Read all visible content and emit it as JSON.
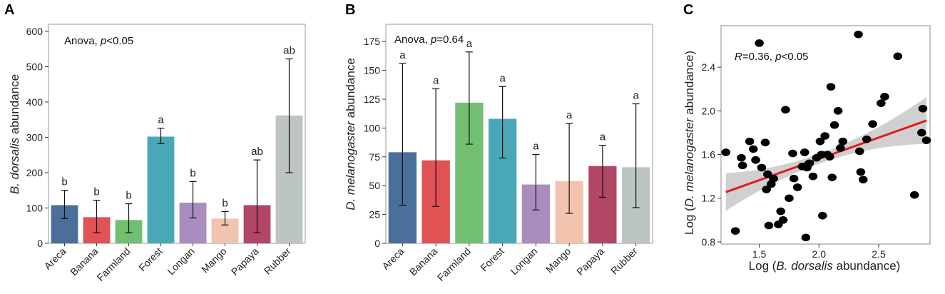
{
  "chart_data": [
    {
      "panel": "A",
      "type": "bar",
      "annotation_prefix": "Anova, ",
      "annotation_stat": "p",
      "annotation_value": "<0.05",
      "ylabel_species": "B. dorsalis",
      "ylabel_suffix": " abundance",
      "ylim": [
        0,
        620
      ],
      "yticks": [
        0,
        100,
        200,
        300,
        400,
        500,
        600
      ],
      "categories": [
        "Areca",
        "Banana",
        "Farmland",
        "Forest",
        "Longan",
        "Mango",
        "Papaya",
        "Rubber"
      ],
      "values": [
        108,
        74,
        66,
        302,
        115,
        70,
        108,
        362
      ],
      "err_low": [
        70,
        30,
        30,
        282,
        72,
        52,
        30,
        200
      ],
      "err_high": [
        150,
        122,
        112,
        326,
        175,
        90,
        236,
        522
      ],
      "letters": [
        "b",
        "b",
        "b",
        "a",
        "b",
        "b",
        "ab",
        "ab"
      ],
      "colors": [
        "#4a6f9a",
        "#e05253",
        "#72bf72",
        "#49a8b8",
        "#a98dbf",
        "#f2c3ae",
        "#b14764",
        "#bcc4c4"
      ]
    },
    {
      "panel": "B",
      "type": "bar",
      "annotation_prefix": "Anova, ",
      "annotation_stat": "p",
      "annotation_value": "=0.64",
      "ylabel_species": "D. melanogaster",
      "ylabel_suffix": " abundance",
      "ylim": [
        0,
        190
      ],
      "yticks": [
        0,
        25,
        50,
        75,
        100,
        125,
        150,
        175
      ],
      "categories": [
        "Areca",
        "Banana",
        "Farmland",
        "Forest",
        "Longan",
        "Mango",
        "Papaya",
        "Rubber"
      ],
      "values": [
        79,
        72,
        122,
        108,
        51,
        54,
        67,
        66
      ],
      "err_low": [
        33,
        32,
        86,
        74,
        29,
        26,
        40,
        31
      ],
      "err_high": [
        156,
        134,
        166,
        136,
        77,
        104,
        85,
        121
      ],
      "letters": [
        "a",
        "a",
        "a",
        "a",
        "a",
        "a",
        "a",
        "a"
      ],
      "colors": [
        "#4a6f9a",
        "#e05253",
        "#72bf72",
        "#49a8b8",
        "#a98dbf",
        "#f2c3ae",
        "#b14764",
        "#bcc4c4"
      ]
    },
    {
      "panel": "C",
      "type": "scatter",
      "annotation_r": "R",
      "annotation_r_value": "=0.36, ",
      "annotation_p": "p",
      "annotation_p_value": "<0.05",
      "xlabel_prefix": "Log (",
      "xlabel_species": "B. dorsalis",
      "xlabel_suffix": " abundance)",
      "ylabel_prefix": "Log (",
      "ylabel_species": "D. melanogaster",
      "ylabel_suffix": " abundance)",
      "xlim": [
        1.18,
        2.93
      ],
      "ylim": [
        0.78,
        2.78
      ],
      "xticks": [
        1.5,
        2.0,
        2.5
      ],
      "xtick_labels": [
        "1.5",
        "2.0",
        "2.5"
      ],
      "yticks": [
        0.8,
        1.2,
        1.6,
        2.0,
        2.4
      ],
      "ytick_labels": [
        "0.8",
        "1.2",
        "1.6",
        "2.0",
        "2.4"
      ],
      "fit": {
        "intercept": 0.78,
        "slope": 0.39,
        "color": "#e41a1c",
        "band_color": "#c8c8c8"
      },
      "x": [
        1.22,
        1.3,
        1.35,
        1.36,
        1.42,
        1.45,
        1.47,
        1.5,
        1.52,
        1.55,
        1.56,
        1.57,
        1.58,
        1.6,
        1.62,
        1.66,
        1.68,
        1.7,
        1.72,
        1.75,
        1.78,
        1.79,
        1.82,
        1.86,
        1.88,
        1.89,
        1.9,
        1.91,
        1.92,
        1.95,
        1.98,
        2.01,
        2.02,
        2.03,
        2.05,
        2.07,
        2.09,
        2.1,
        2.11,
        2.13,
        2.16,
        2.18,
        2.2,
        2.33,
        2.34,
        2.35,
        2.37,
        2.4,
        2.45,
        2.52,
        2.55,
        2.66,
        2.8,
        2.86,
        2.87,
        2.9
      ],
      "y": [
        1.62,
        0.9,
        1.57,
        1.5,
        1.72,
        1.65,
        1.55,
        2.62,
        1.48,
        1.71,
        1.28,
        1.42,
        0.95,
        1.33,
        1.38,
        0.96,
        1.08,
        1.0,
        2.01,
        1.2,
        1.61,
        1.38,
        1.3,
        1.49,
        1.62,
        0.84,
        1.48,
        1.51,
        1.52,
        1.4,
        1.57,
        1.72,
        1.6,
        1.04,
        1.77,
        1.6,
        1.58,
        2.22,
        1.39,
        1.87,
        2.0,
        1.66,
        1.72,
        2.7,
        1.63,
        1.44,
        1.37,
        1.74,
        1.88,
        2.07,
        2.13,
        2.5,
        1.23,
        1.8,
        2.02,
        1.73
      ]
    }
  ]
}
